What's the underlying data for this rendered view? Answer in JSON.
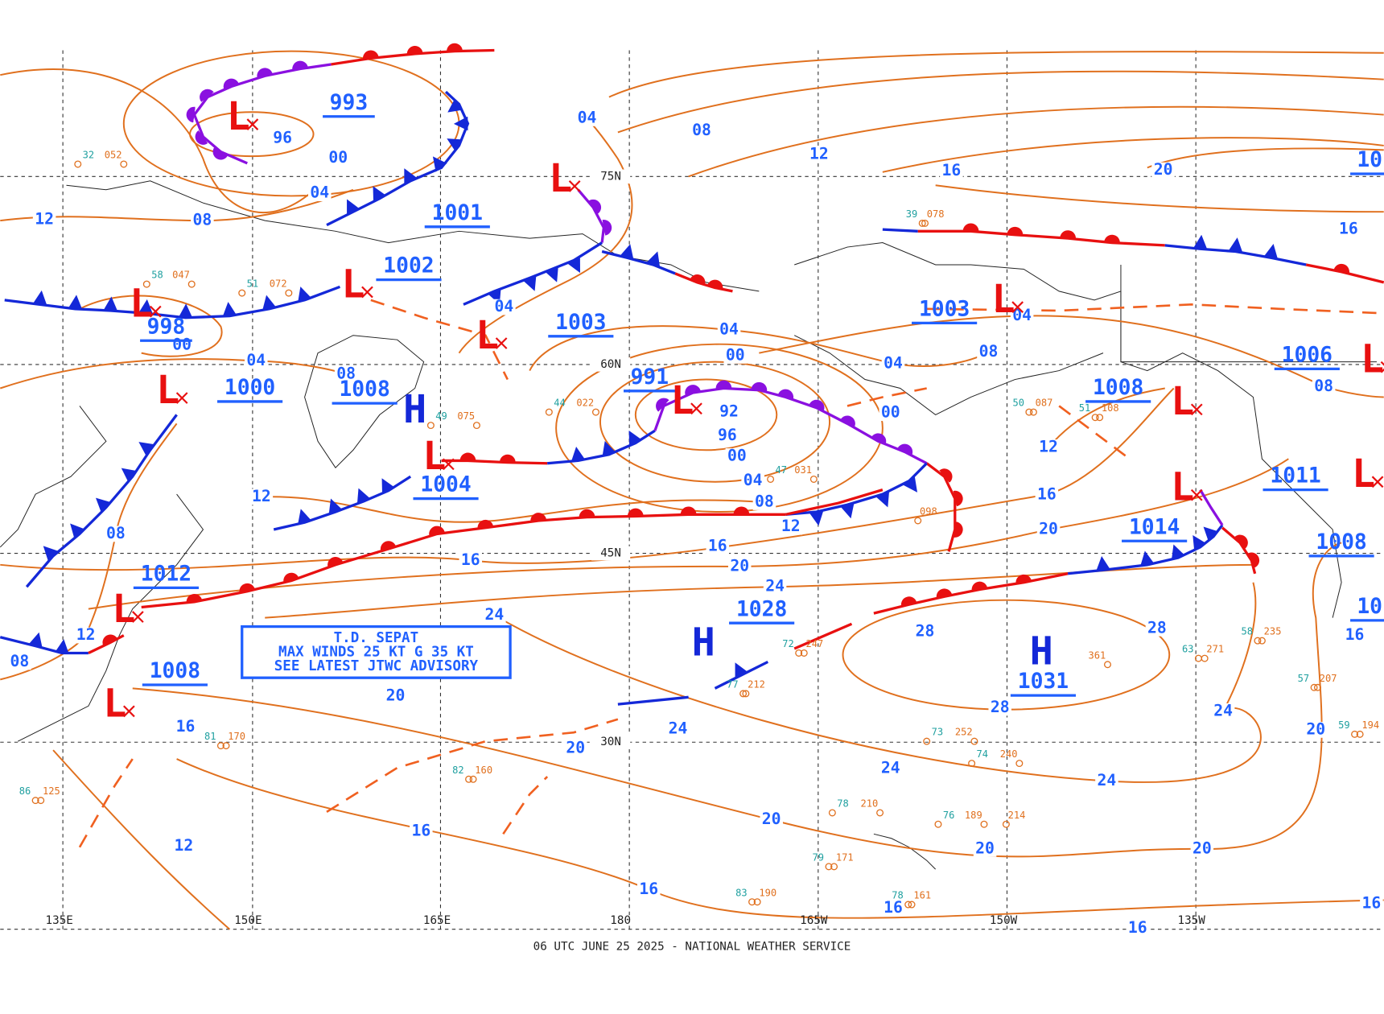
{
  "map": {
    "footer": "06 UTC JUNE 25 2025 - NATIONAL WEATHER SERVICE",
    "advisory": [
      "T.D. SEPAT",
      "MAX WINDS 25 KT G 35 KT",
      "SEE LATEST JTWC ADVISORY"
    ],
    "lat_labels": [
      "75N",
      "60N",
      "45N",
      "30N"
    ],
    "lon_labels": [
      "135E",
      "150E",
      "165E",
      "180",
      "165W",
      "150W",
      "135W"
    ],
    "centers": [
      {
        "symbol": "L"
      },
      {
        "symbol": "L"
      },
      {
        "symbol": "L"
      },
      {
        "symbol": "L"
      },
      {
        "symbol": "L"
      },
      {
        "symbol": "L"
      },
      {
        "symbol": "L"
      },
      {
        "symbol": "L"
      },
      {
        "symbol": "L"
      },
      {
        "symbol": "L"
      },
      {
        "symbol": "L"
      },
      {
        "symbol": "L"
      },
      {
        "symbol": "L"
      },
      {
        "symbol": "L"
      },
      {
        "symbol": "L"
      },
      {
        "symbol": "H"
      },
      {
        "symbol": "H"
      },
      {
        "symbol": "H"
      }
    ],
    "pressure_labels": [
      "993",
      "1001",
      "1002",
      "998",
      "1000",
      "1008",
      "1004",
      "1003",
      "991",
      "1003",
      "1008",
      "1006",
      "1011",
      "1014",
      "1008",
      "1012",
      "1028",
      "1031",
      "1008",
      "10",
      "10"
    ],
    "isobar_labels": [
      "96",
      "00",
      "04",
      "04",
      "08",
      "12",
      "16",
      "20",
      "16",
      "08",
      "12",
      "00",
      "04",
      "08",
      "04",
      "04",
      "00",
      "04",
      "04",
      "08",
      "00",
      "08",
      "92",
      "96",
      "00",
      "04",
      "08",
      "12",
      "12",
      "16",
      "20",
      "12",
      "16",
      "16",
      "20",
      "24",
      "24",
      "28",
      "28",
      "28",
      "24",
      "20",
      "08",
      "12",
      "08",
      "20",
      "16",
      "24",
      "20",
      "24",
      "24",
      "20",
      "16",
      "20",
      "20",
      "12",
      "16",
      "16",
      "16",
      "16",
      "16"
    ],
    "station_labels": [
      {
        "text": "32",
        "color": "#20a0a0"
      },
      {
        "text": "052",
        "color": "#e0701e"
      },
      {
        "text": "58",
        "color": "#20a0a0"
      },
      {
        "text": "047",
        "color": "#e0701e"
      },
      {
        "text": "51",
        "color": "#20a0a0"
      },
      {
        "text": "072",
        "color": "#e0701e"
      },
      {
        "text": "49",
        "color": "#20a0a0"
      },
      {
        "text": "075",
        "color": "#e0701e"
      },
      {
        "text": "44",
        "color": "#20a0a0"
      },
      {
        "text": "022",
        "color": "#e0701e"
      },
      {
        "text": "47",
        "color": "#20a0a0"
      },
      {
        "text": "031",
        "color": "#e0701e"
      },
      {
        "text": "098",
        "color": "#e0701e"
      },
      {
        "text": "77",
        "color": "#20a0a0"
      },
      {
        "text": "212",
        "color": "#e0701e"
      },
      {
        "text": "72",
        "color": "#20a0a0"
      },
      {
        "text": "247",
        "color": "#e0701e"
      },
      {
        "text": "82",
        "color": "#20a0a0"
      },
      {
        "text": "160",
        "color": "#e0701e"
      },
      {
        "text": "81",
        "color": "#20a0a0"
      },
      {
        "text": "170",
        "color": "#e0701e"
      },
      {
        "text": "86",
        "color": "#20a0a0"
      },
      {
        "text": "125",
        "color": "#e0701e"
      },
      {
        "text": "39",
        "color": "#20a0a0"
      },
      {
        "text": "078",
        "color": "#e0701e"
      },
      {
        "text": "50",
        "color": "#20a0a0"
      },
      {
        "text": "087",
        "color": "#e0701e"
      },
      {
        "text": "51",
        "color": "#20a0a0"
      },
      {
        "text": "108",
        "color": "#e0701e"
      },
      {
        "text": "58",
        "color": "#20a0a0"
      },
      {
        "text": "235",
        "color": "#e0701e"
      },
      {
        "text": "63",
        "color": "#20a0a0"
      },
      {
        "text": "271",
        "color": "#e0701e"
      },
      {
        "text": "361",
        "color": "#e0701e"
      },
      {
        "text": "73",
        "color": "#20a0a0"
      },
      {
        "text": "252",
        "color": "#e0701e"
      },
      {
        "text": "74",
        "color": "#20a0a0"
      },
      {
        "text": "240",
        "color": "#e0701e"
      },
      {
        "text": "78",
        "color": "#20a0a0"
      },
      {
        "text": "210",
        "color": "#e0701e"
      },
      {
        "text": "76",
        "color": "#20a0a0"
      },
      {
        "text": "189",
        "color": "#e0701e"
      },
      {
        "text": "214",
        "color": "#e0701e"
      },
      {
        "text": "79",
        "color": "#20a0a0"
      },
      {
        "text": "171",
        "color": "#e0701e"
      },
      {
        "text": "83",
        "color": "#20a0a0"
      },
      {
        "text": "190",
        "color": "#e0701e"
      },
      {
        "text": "78",
        "color": "#20a0a0"
      },
      {
        "text": "161",
        "color": "#e0701e"
      },
      {
        "text": "57",
        "color": "#20a0a0"
      },
      {
        "text": "207",
        "color": "#e0701e"
      },
      {
        "text": "59",
        "color": "#20a0a0"
      },
      {
        "text": "194",
        "color": "#e0701e"
      }
    ]
  }
}
